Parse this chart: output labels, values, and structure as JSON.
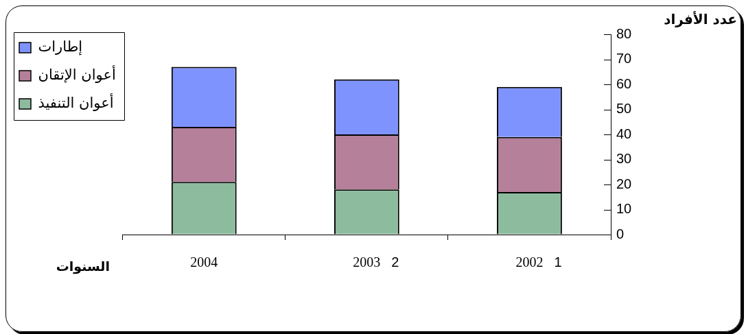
{
  "chart_data": {
    "type": "bar",
    "stacked": true,
    "categories": [
      "2004",
      "2003",
      "2002"
    ],
    "series": [
      {
        "name": "أعوان التنفيذ",
        "color": "#8dbb9d",
        "values": [
          21,
          18,
          17
        ]
      },
      {
        "name": "أعوان الإتقان",
        "color": "#b5809a",
        "values": [
          22,
          22,
          22
        ]
      },
      {
        "name": "إطارات",
        "color": "#7f93ff",
        "values": [
          24,
          22,
          20
        ]
      }
    ],
    "xlabel": "السنوات",
    "ylabel": "عدد الأفراد",
    "ylim": [
      0,
      80
    ],
    "yticks": [
      0,
      10,
      20,
      30,
      40,
      50,
      60,
      70,
      80
    ],
    "legend": "top left",
    "annotations": [
      "2",
      "1"
    ]
  }
}
